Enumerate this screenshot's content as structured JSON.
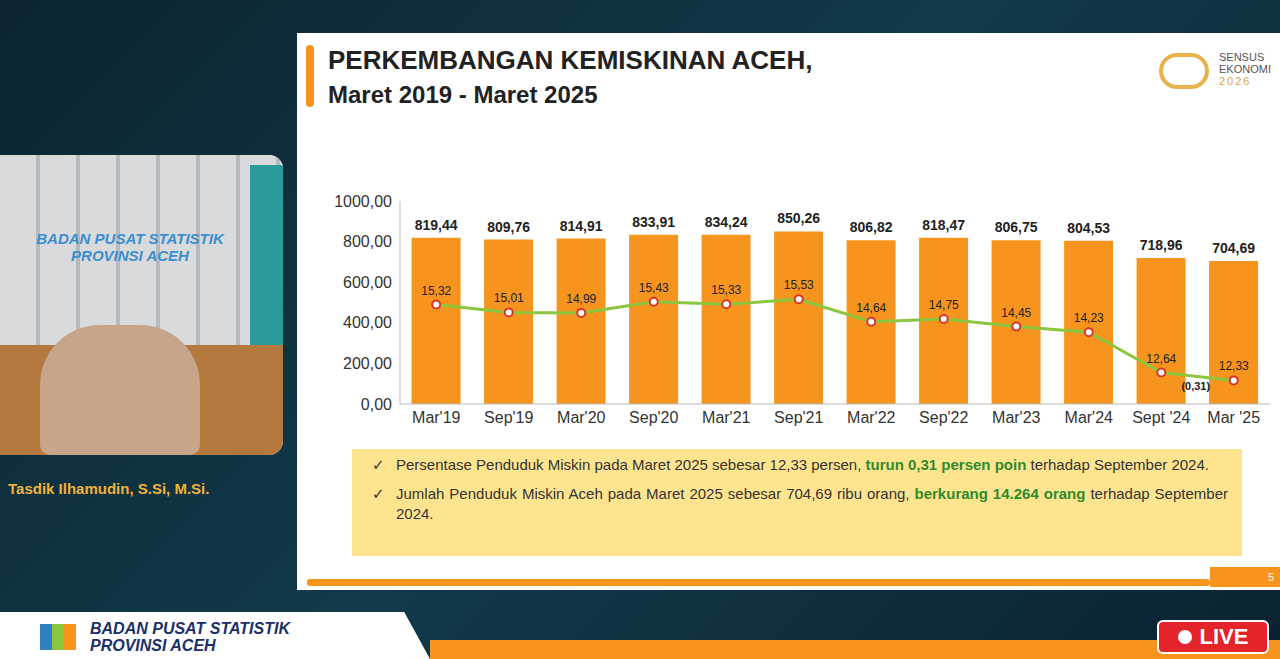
{
  "chart_data": {
    "type": "bar",
    "title": "PERKEMBANGAN KEMISKINAN ACEH,",
    "subtitle": "Maret 2019 - Maret 2025",
    "categories": [
      "Mar'19",
      "Sep'19",
      "Mar'20",
      "Sep'20",
      "Mar'21",
      "Sep'21",
      "Mar'22",
      "Sep'22",
      "Mar'23",
      "Mar'24",
      "Sept '24",
      "Mar '25"
    ],
    "series": [
      {
        "type": "bar",
        "color": "#f7941d",
        "values": [
          819.44,
          809.76,
          814.91,
          833.91,
          834.24,
          850.26,
          806.82,
          818.47,
          806.75,
          804.53,
          718.96,
          704.69
        ],
        "value_labels": [
          "819,44",
          "809,76",
          "814,91",
          "833,91",
          "834,24",
          "850,26",
          "806,82",
          "818,47",
          "806,75",
          "804,53",
          "718,96",
          "704,69"
        ]
      },
      {
        "type": "line",
        "axis": "y2",
        "color": "#8cc63f",
        "marker": "circle",
        "values": [
          15.32,
          15.01,
          14.99,
          15.43,
          15.33,
          15.53,
          14.64,
          14.75,
          14.45,
          14.23,
          12.64,
          12.33
        ],
        "value_labels": [
          "15,32",
          "15,01",
          "14,99",
          "15,43",
          "15,33",
          "15,53",
          "14,64",
          "14,75",
          "14,45",
          "14,23",
          "12,64",
          "12,33"
        ]
      }
    ],
    "ylim": [
      0,
      1000
    ],
    "yticks": [
      {
        "value": 0,
        "label": "0,00"
      },
      {
        "value": 200,
        "label": "200,00"
      },
      {
        "value": 400,
        "label": "400,00"
      },
      {
        "value": 600,
        "label": "600,00"
      },
      {
        "value": 800,
        "label": "800,00"
      },
      {
        "value": 1000,
        "label": "1000,00"
      }
    ],
    "y2lim": [
      11.4,
      19.4
    ],
    "grid": false,
    "data_labels": true,
    "tick_labels": "y",
    "annotations": [
      {
        "text": "(0,31)",
        "category": "Mar '25"
      }
    ],
    "notes": [
      {
        "bullet": "✓",
        "before": "Persentase Penduduk Miskin pada Maret 2025 sebesar 12,33 persen, ",
        "highlight": "turun 0,31 persen poin",
        "after": " terhadap September 2024."
      },
      {
        "bullet": "✓",
        "before": "Jumlah Penduduk Miskin Aceh pada Maret 2025 sebesar 704,69 ribu orang, ",
        "highlight": "berkurang 14.264 orang",
        "after": " terhadap September 2024."
      }
    ]
  },
  "logo": [
    "SENSUS",
    "EKONOMI",
    "2026"
  ],
  "slide_number": "5",
  "speaker": "Tasdik Ilhamudin, S.Si, M.Si.",
  "video_backdrop": "BADAN PUSAT STATISTIK PROVINSI ACEH",
  "footer": [
    "BADAN PUSAT STATISTIK",
    "PROVINSI ACEH"
  ],
  "live": "LIVE"
}
